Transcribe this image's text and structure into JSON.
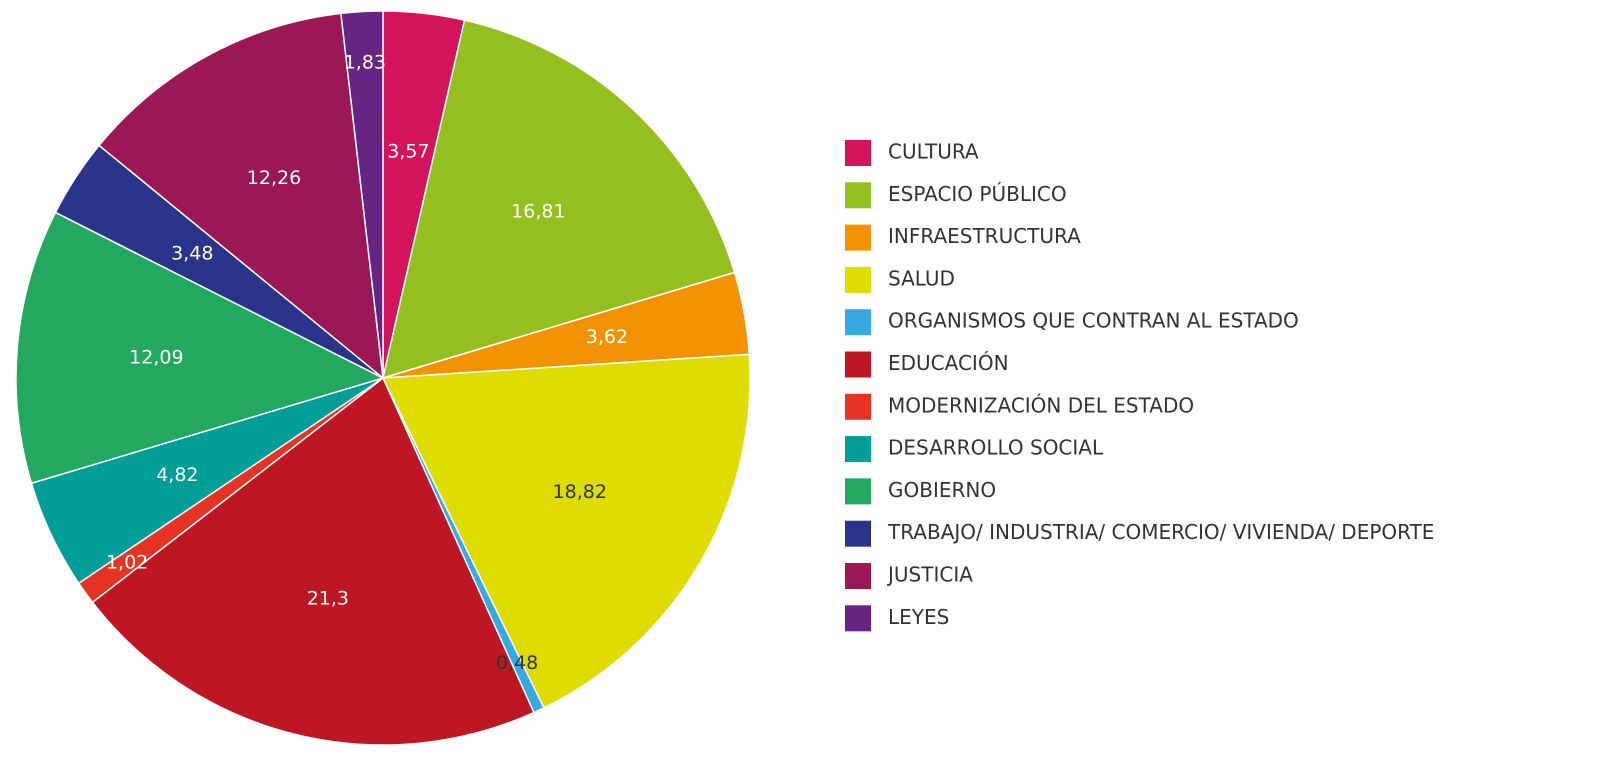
{
  "chart_data": {
    "type": "pie",
    "categories": [
      "CULTURA",
      "ESPACIO PÚBLICO",
      "INFRAESTRUCTURA",
      "SALUD",
      "ORGANISMOS QUE CONTRAN AL ESTADO",
      "EDUCACIÓN",
      "MODERNIZACIÓN DEL ESTADO",
      "DESARROLLO SOCIAL",
      "GOBIERNO",
      "TRABAJO/ INDUSTRIA/ COMERCIO/ VIVIENDA/ DEPORTE",
      "JUSTICIA",
      "LEYES"
    ],
    "values": [
      3.57,
      16.81,
      3.62,
      18.82,
      0.48,
      21.3,
      1.02,
      4.82,
      12.09,
      3.48,
      12.26,
      1.83
    ],
    "value_labels": [
      "3,57",
      "16,81",
      "3,62",
      "18,82",
      "0,48",
      "21,3",
      "1,02",
      "4,82",
      "12,09",
      "3,48",
      "12,26",
      "1,83"
    ],
    "colors": [
      "#d4145a",
      "#93c01f",
      "#f39200",
      "#dedc00",
      "#36a9e1",
      "#be1622",
      "#e63323",
      "#009e96",
      "#22a85f",
      "#29348a",
      "#9b1756",
      "#662483"
    ],
    "legend": "right"
  }
}
